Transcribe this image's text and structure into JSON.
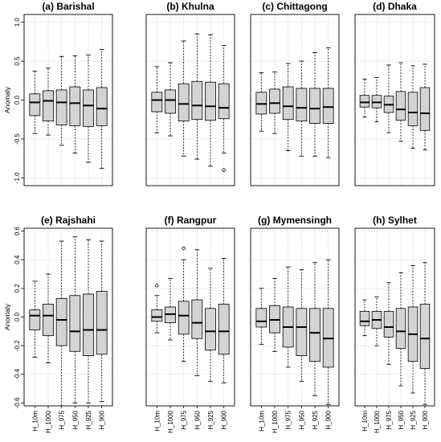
{
  "chart_data": [
    {
      "type": "boxplot",
      "title": "(a) Barishal",
      "ylabel": "Anomaly",
      "ylim": [
        -1.1,
        1.1
      ],
      "yticks": [
        -1.0,
        -0.5,
        0.0,
        0.5,
        1.0
      ],
      "ytick_labels": [
        "-1.0",
        "-0.5",
        "0.0",
        "0.5",
        "1.0"
      ],
      "categories": [
        "H_10m",
        "H_1000",
        "H_975",
        "H_950",
        "H_925",
        "H_900"
      ],
      "boxes": [
        {
          "whislo": -0.43,
          "q1": -0.2,
          "med": -0.03,
          "q3": 0.08,
          "whishi": 0.37,
          "fliers": []
        },
        {
          "whislo": -0.45,
          "q1": -0.27,
          "med": -0.01,
          "q3": 0.12,
          "whishi": 0.41,
          "fliers": []
        },
        {
          "whislo": -0.58,
          "q1": -0.32,
          "med": -0.03,
          "q3": 0.13,
          "whishi": 0.56,
          "fliers": []
        },
        {
          "whislo": -0.68,
          "q1": -0.33,
          "med": -0.04,
          "q3": 0.17,
          "whishi": 0.57,
          "fliers": []
        },
        {
          "whislo": -0.8,
          "q1": -0.34,
          "med": -0.07,
          "q3": 0.13,
          "whishi": 0.58,
          "fliers": []
        },
        {
          "whislo": -0.88,
          "q1": -0.33,
          "med": -0.11,
          "q3": 0.16,
          "whishi": 0.65,
          "fliers": []
        }
      ]
    },
    {
      "type": "boxplot",
      "title": "(b) Khulna",
      "ylabel": "",
      "ylim": [
        -1.1,
        1.1
      ],
      "yticks": [],
      "ytick_labels": [],
      "categories": [
        "H_10m",
        "H_1000",
        "H_975",
        "H_950",
        "H_925",
        "H_900"
      ],
      "boxes": [
        {
          "whislo": -0.42,
          "q1": -0.15,
          "med": 0.0,
          "q3": 0.1,
          "whishi": 0.43,
          "fliers": []
        },
        {
          "whislo": -0.46,
          "q1": -0.17,
          "med": 0.0,
          "q3": 0.13,
          "whishi": 0.48,
          "fliers": []
        },
        {
          "whislo": -0.72,
          "q1": -0.27,
          "med": -0.05,
          "q3": 0.21,
          "whishi": 0.76,
          "fliers": []
        },
        {
          "whislo": -0.76,
          "q1": -0.25,
          "med": -0.07,
          "q3": 0.24,
          "whishi": 0.85,
          "fliers": []
        },
        {
          "whislo": -0.85,
          "q1": -0.26,
          "med": -0.08,
          "q3": 0.23,
          "whishi": 0.84,
          "fliers": []
        },
        {
          "whislo": -0.68,
          "q1": -0.24,
          "med": -0.1,
          "q3": 0.21,
          "whishi": 0.7,
          "fliers": [
            -0.9
          ]
        }
      ]
    },
    {
      "type": "boxplot",
      "title": "(c) Chittagong",
      "ylabel": "",
      "ylim": [
        -1.1,
        1.1
      ],
      "yticks": [],
      "ytick_labels": [],
      "categories": [
        "H_10m",
        "H_1000",
        "H_975",
        "H_950",
        "H_925",
        "H_900"
      ],
      "boxes": [
        {
          "whislo": -0.4,
          "q1": -0.18,
          "med": -0.05,
          "q3": 0.1,
          "whishi": 0.35,
          "fliers": []
        },
        {
          "whislo": -0.43,
          "q1": -0.17,
          "med": -0.04,
          "q3": 0.14,
          "whishi": 0.36,
          "fliers": []
        },
        {
          "whislo": -0.65,
          "q1": -0.25,
          "med": -0.08,
          "q3": 0.17,
          "whishi": 0.47,
          "fliers": []
        },
        {
          "whislo": -0.72,
          "q1": -0.27,
          "med": -0.1,
          "q3": 0.15,
          "whishi": 0.5,
          "fliers": []
        },
        {
          "whislo": -0.72,
          "q1": -0.3,
          "med": -0.11,
          "q3": 0.15,
          "whishi": 0.61,
          "fliers": []
        },
        {
          "whislo": -0.74,
          "q1": -0.3,
          "med": -0.09,
          "q3": 0.15,
          "whishi": 0.67,
          "fliers": []
        }
      ]
    },
    {
      "type": "boxplot",
      "title": "(d) Dhaka",
      "ylabel": "",
      "ylim": [
        -1.1,
        1.1
      ],
      "yticks": [],
      "ytick_labels": [],
      "categories": [
        "H_10m",
        "H_1000",
        "H_975",
        "H_950",
        "H_925",
        "H_900"
      ],
      "boxes": [
        {
          "whislo": -0.22,
          "q1": -0.09,
          "med": -0.03,
          "q3": 0.06,
          "whishi": 0.27,
          "fliers": []
        },
        {
          "whislo": -0.28,
          "q1": -0.1,
          "med": -0.03,
          "q3": 0.06,
          "whishi": 0.29,
          "fliers": []
        },
        {
          "whislo": -0.42,
          "q1": -0.16,
          "med": -0.06,
          "q3": 0.05,
          "whishi": 0.45,
          "fliers": []
        },
        {
          "whislo": -0.53,
          "q1": -0.26,
          "med": -0.12,
          "q3": 0.11,
          "whishi": 0.48,
          "fliers": []
        },
        {
          "whislo": -0.62,
          "q1": -0.33,
          "med": -0.16,
          "q3": 0.1,
          "whishi": 0.44,
          "fliers": []
        },
        {
          "whislo": -0.64,
          "q1": -0.39,
          "med": -0.17,
          "q3": 0.16,
          "whishi": 0.46,
          "fliers": []
        }
      ]
    },
    {
      "type": "boxplot",
      "title": "(e) Rajshahi",
      "ylabel": "Anomaly",
      "ylim": [
        -0.62,
        0.62
      ],
      "yticks": [
        -0.6,
        -0.4,
        -0.2,
        0.0,
        0.2,
        0.4,
        0.6
      ],
      "ytick_labels": [
        "-0.6",
        "-0.4",
        "-0.2",
        "0.0",
        "0.2",
        "0.4",
        "0.6"
      ],
      "categories": [
        "H_10m",
        "H_1000",
        "H_975",
        "H_950",
        "H_925",
        "H_900"
      ],
      "boxes": [
        {
          "whislo": -0.28,
          "q1": -0.09,
          "med": 0.01,
          "q3": 0.05,
          "whishi": 0.25,
          "fliers": []
        },
        {
          "whislo": -0.32,
          "q1": -0.13,
          "med": 0.01,
          "q3": 0.09,
          "whishi": 0.3,
          "fliers": []
        },
        {
          "whislo": -0.62,
          "q1": -0.2,
          "med": -0.02,
          "q3": 0.13,
          "whishi": 0.53,
          "fliers": []
        },
        {
          "whislo": -0.6,
          "q1": -0.24,
          "med": -0.1,
          "q3": 0.15,
          "whishi": 0.56,
          "fliers": []
        },
        {
          "whislo": -0.6,
          "q1": -0.27,
          "med": -0.09,
          "q3": 0.16,
          "whishi": 0.54,
          "fliers": []
        },
        {
          "whislo": -0.59,
          "q1": -0.26,
          "med": -0.09,
          "q3": 0.18,
          "whishi": 0.53,
          "fliers": []
        }
      ]
    },
    {
      "type": "boxplot",
      "title": "(f) Rangpur",
      "ylabel": "",
      "ylim": [
        -0.62,
        0.62
      ],
      "yticks": [],
      "ytick_labels": [],
      "categories": [
        "H_10m",
        "H_1000",
        "H_975",
        "H_950",
        "H_925",
        "H_900"
      ],
      "boxes": [
        {
          "whislo": -0.11,
          "q1": -0.03,
          "med": 0.0,
          "q3": 0.05,
          "whishi": 0.15,
          "fliers": [
            0.22
          ]
        },
        {
          "whislo": -0.16,
          "q1": -0.04,
          "med": 0.02,
          "q3": 0.07,
          "whishi": 0.27,
          "fliers": []
        },
        {
          "whislo": -0.31,
          "q1": -0.12,
          "med": 0.01,
          "q3": 0.11,
          "whishi": 0.4,
          "fliers": [
            0.48
          ]
        },
        {
          "whislo": -0.41,
          "q1": -0.15,
          "med": -0.04,
          "q3": 0.12,
          "whishi": 0.47,
          "fliers": []
        },
        {
          "whislo": -0.45,
          "q1": -0.23,
          "med": -0.1,
          "q3": 0.06,
          "whishi": 0.34,
          "fliers": []
        },
        {
          "whislo": -0.46,
          "q1": -0.26,
          "med": -0.1,
          "q3": 0.09,
          "whishi": 0.41,
          "fliers": []
        }
      ]
    },
    {
      "type": "boxplot",
      "title": "(g) Mymensingh",
      "ylabel": "",
      "ylim": [
        -0.62,
        0.62
      ],
      "yticks": [],
      "ytick_labels": [],
      "categories": [
        "H_10m",
        "H_1000",
        "H_975",
        "H_950",
        "H_925",
        "H_900"
      ],
      "boxes": [
        {
          "whislo": -0.19,
          "q1": -0.07,
          "med": -0.03,
          "q3": 0.06,
          "whishi": 0.2,
          "fliers": []
        },
        {
          "whislo": -0.24,
          "q1": -0.11,
          "med": -0.02,
          "q3": 0.08,
          "whishi": 0.27,
          "fliers": []
        },
        {
          "whislo": -0.35,
          "q1": -0.21,
          "med": -0.07,
          "q3": 0.07,
          "whishi": 0.35,
          "fliers": []
        },
        {
          "whislo": -0.45,
          "q1": -0.27,
          "med": -0.07,
          "q3": 0.06,
          "whishi": 0.33,
          "fliers": []
        },
        {
          "whislo": -0.55,
          "q1": -0.31,
          "med": -0.11,
          "q3": 0.06,
          "whishi": 0.38,
          "fliers": []
        },
        {
          "whislo": -0.61,
          "q1": -0.35,
          "med": -0.15,
          "q3": 0.06,
          "whishi": 0.4,
          "fliers": []
        }
      ]
    },
    {
      "type": "boxplot",
      "title": "(h) Sylhet",
      "ylabel": "",
      "ylim": [
        -0.62,
        0.62
      ],
      "yticks": [],
      "ytick_labels": [],
      "categories": [
        "H_10m",
        "H_1000",
        "H_975",
        "H_950",
        "H_925",
        "H_900"
      ],
      "boxes": [
        {
          "whislo": -0.13,
          "q1": -0.06,
          "med": -0.03,
          "q3": 0.04,
          "whishi": 0.12,
          "fliers": []
        },
        {
          "whislo": -0.2,
          "q1": -0.08,
          "med": -0.02,
          "q3": 0.04,
          "whishi": 0.14,
          "fliers": []
        },
        {
          "whislo": -0.33,
          "q1": -0.14,
          "med": -0.07,
          "q3": 0.04,
          "whishi": 0.24,
          "fliers": []
        },
        {
          "whislo": -0.48,
          "q1": -0.22,
          "med": -0.1,
          "q3": 0.06,
          "whishi": 0.31,
          "fliers": []
        },
        {
          "whislo": -0.53,
          "q1": -0.31,
          "med": -0.12,
          "q3": 0.07,
          "whishi": 0.36,
          "fliers": []
        },
        {
          "whislo": -0.61,
          "q1": -0.36,
          "med": -0.15,
          "q3": 0.09,
          "whishi": 0.38,
          "fliers": []
        }
      ]
    }
  ]
}
